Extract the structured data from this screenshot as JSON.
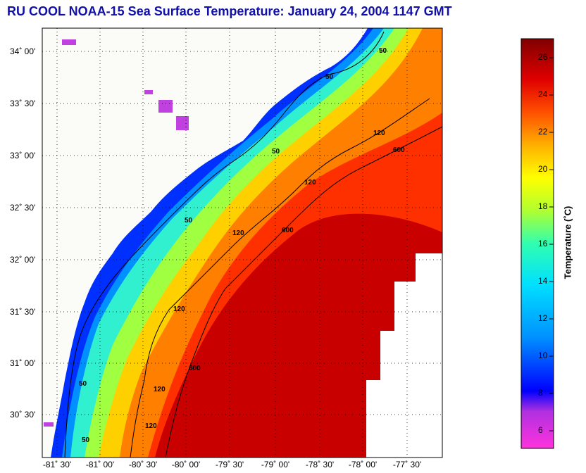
{
  "title": "RU COOL  NOAA-15  Sea Surface Temperature:  January 24, 2004 1147 GMT",
  "lat_labels": [
    "34˚ 00'",
    "33˚ 30'",
    "33˚ 00'",
    "32˚ 30'",
    "32˚ 00'",
    "31˚ 30'",
    "31˚ 00'",
    "30˚ 30'"
  ],
  "lon_labels": [
    "-81˚ 30'",
    "-81˚ 00'",
    "-80˚ 30'",
    "-80˚ 00'",
    "-79˚ 30'",
    "-79˚ 00'",
    "-78˚ 30'",
    "-78˚ 00'",
    "-77˚ 30'"
  ],
  "colorbar": {
    "label": "Temperature (˚C)",
    "ticks": [
      "26",
      "24",
      "22",
      "20",
      "18",
      "16",
      "14",
      "12",
      "10",
      "8",
      "6"
    ],
    "min": 5,
    "max": 27,
    "colors": [
      "#ff33dd",
      "#b030e0",
      "#0000ff",
      "#0090ff",
      "#00e0ff",
      "#30ffb0",
      "#b0ff30",
      "#ffff00",
      "#ffb000",
      "#ff5000",
      "#e00000",
      "#800000"
    ]
  },
  "contours": {
    "label_50": "50",
    "label_120": "120",
    "label_600": "600"
  },
  "colors": {
    "land": "#fbfbf7",
    "title": "#1010a8"
  }
}
